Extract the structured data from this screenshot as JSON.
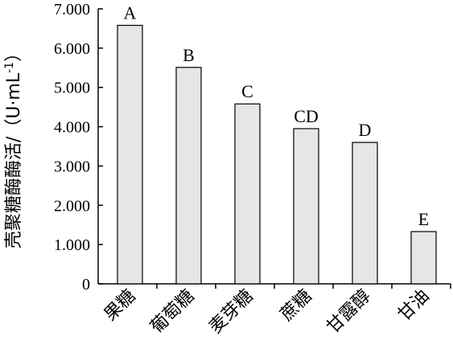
{
  "chart_data": {
    "type": "bar",
    "title": "",
    "xlabel": "",
    "ylabel": "壳聚糖酶酶活/（U·mL",
    "ylabel_sup": "-1",
    "ylabel_tail": "）",
    "ylim": [
      0,
      7
    ],
    "yticks": [
      "0",
      "1.000",
      "2.000",
      "3.000",
      "4.000",
      "5.000",
      "6.000",
      "7.000"
    ],
    "categories": [
      "果糖",
      "葡萄糖",
      "麦芽糖",
      "蔗糖",
      "甘露醇",
      "甘油"
    ],
    "values": [
      6.58,
      5.51,
      4.58,
      3.95,
      3.6,
      1.33
    ],
    "significance": [
      "A",
      "B",
      "C",
      "CD",
      "D",
      "E"
    ],
    "bar_fill": "#e6e6e6",
    "bar_stroke": "#000000",
    "grid": false,
    "legend": "none"
  }
}
